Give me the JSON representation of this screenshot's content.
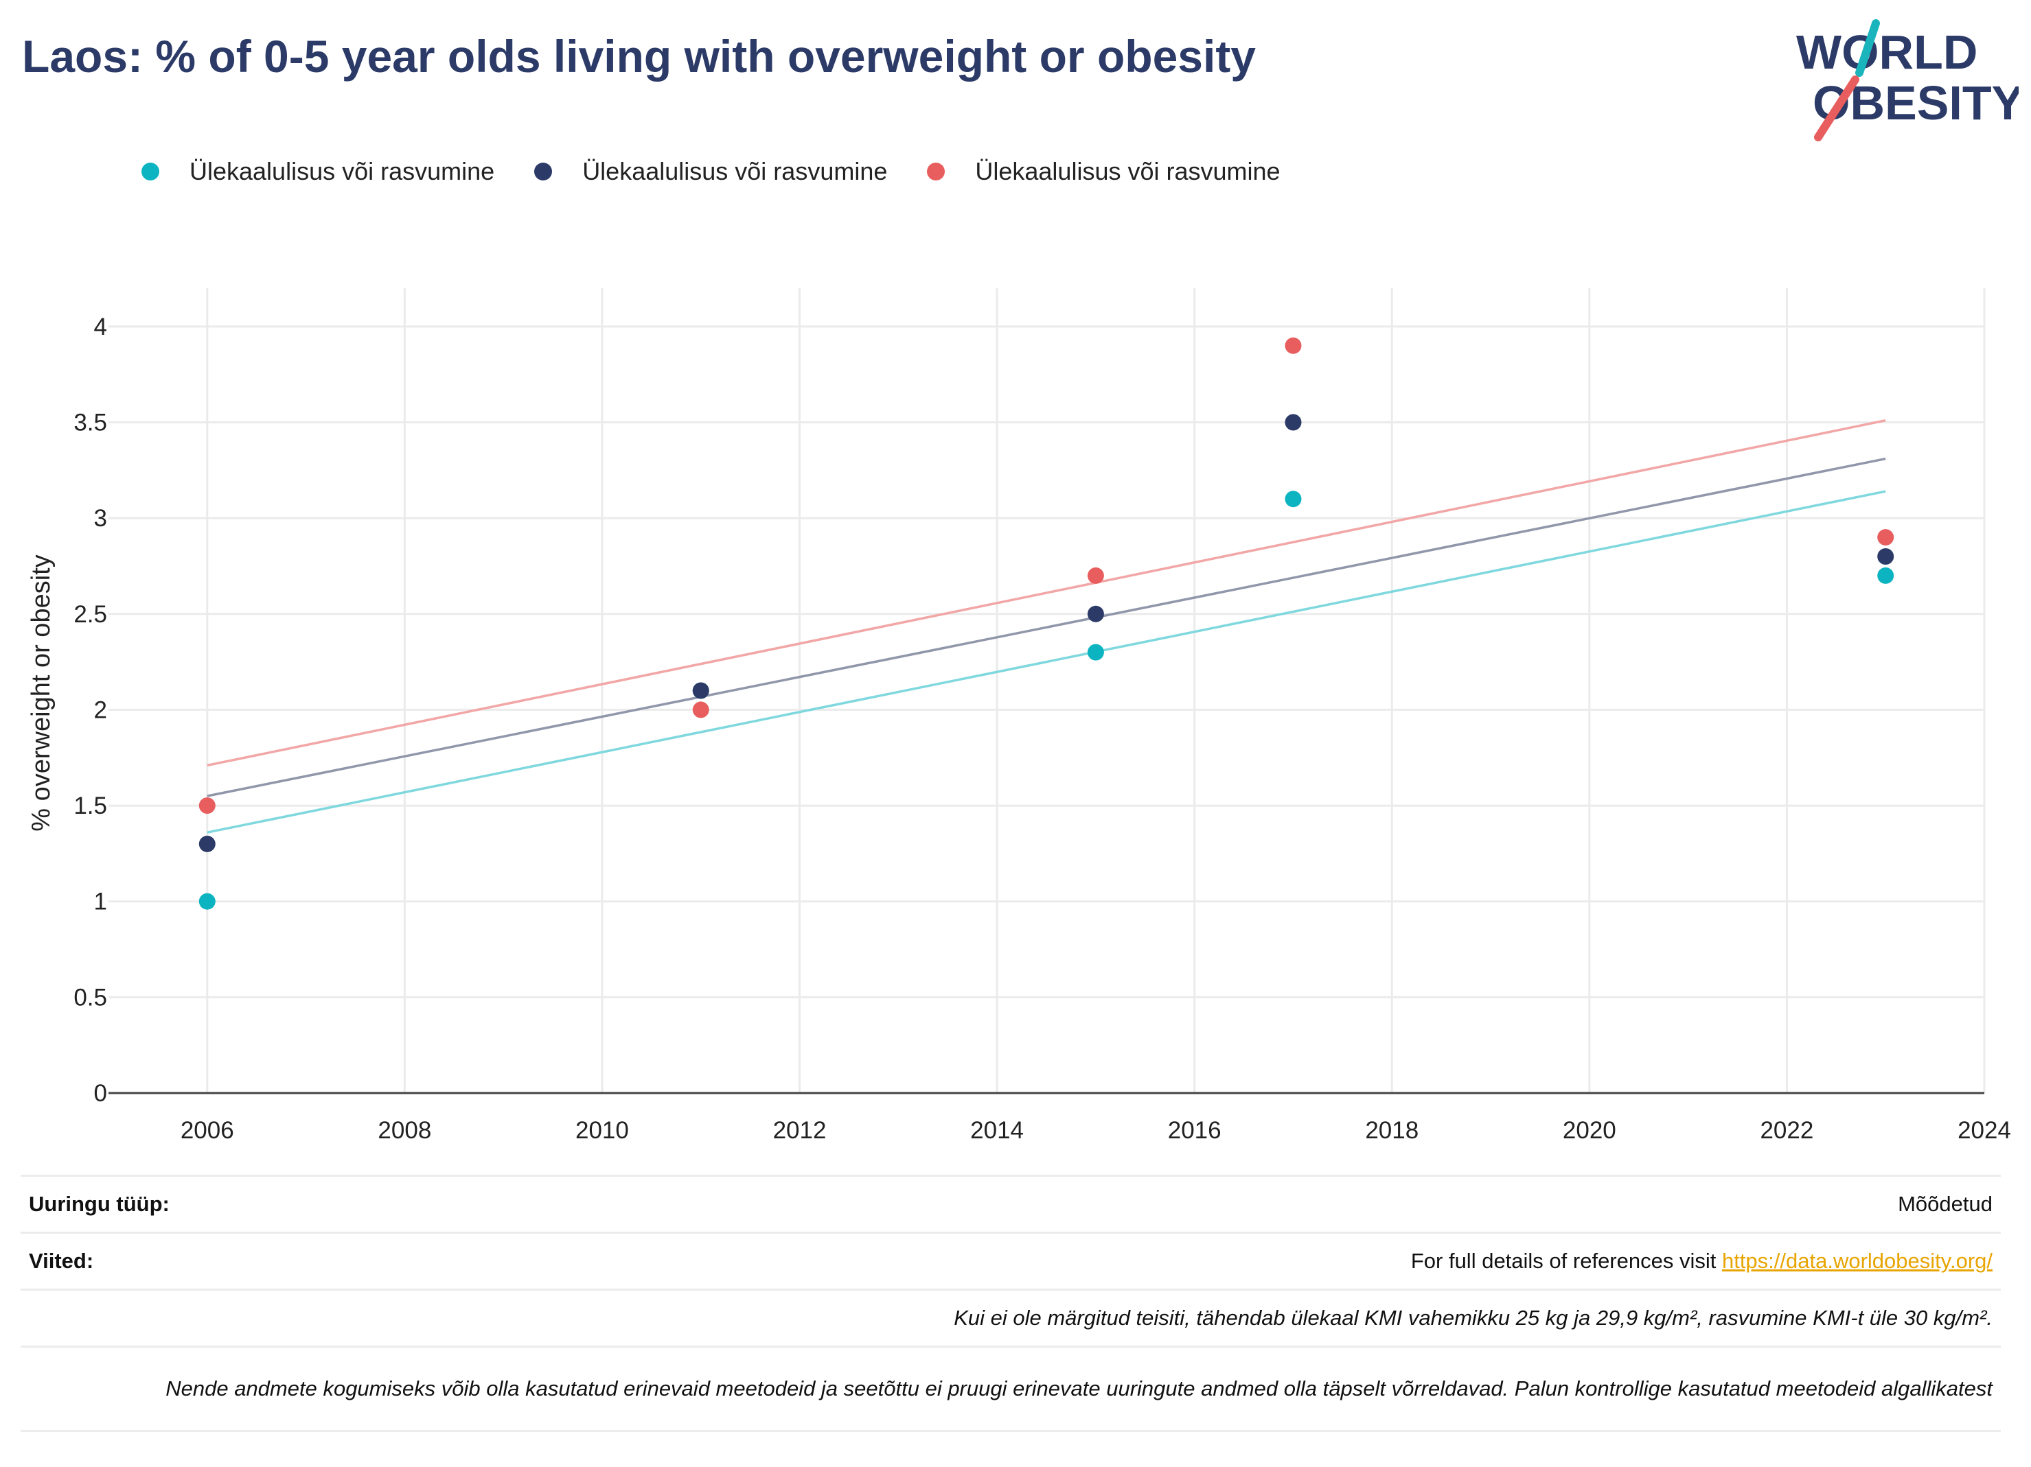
{
  "title": "Laos: % of 0-5 year olds living with overweight or obesity",
  "logo": {
    "line1": "WORLD",
    "line2": "OBESITY",
    "colors": {
      "navy": "#2b3a67",
      "teal": "#1ab4bd",
      "coral": "#e85d5d"
    }
  },
  "legend": [
    {
      "label": "Ülekaalulisus või rasvumine",
      "color": "#0bb4c0"
    },
    {
      "label": "Ülekaalulisus või rasvumine",
      "color": "#2b3a67"
    },
    {
      "label": "Ülekaalulisus või rasvumine",
      "color": "#e85d5d"
    }
  ],
  "chart_data": {
    "type": "scatter",
    "title": "Laos: % of 0-5 year olds living with overweight or obesity",
    "xlabel": "",
    "ylabel": "% overweight or obesity",
    "xlim": [
      2005,
      2024
    ],
    "ylim": [
      0,
      4.2
    ],
    "x_ticks": [
      2006,
      2008,
      2010,
      2012,
      2014,
      2016,
      2018,
      2020,
      2022,
      2024
    ],
    "y_ticks": [
      0,
      0.5,
      1,
      1.5,
      2,
      2.5,
      3,
      3.5,
      4
    ],
    "grid": true,
    "legend_position": "top-left",
    "series": [
      {
        "name": "Ülekaalulisus või rasvumine",
        "color": "#0bb4c0",
        "trend_color": "#7fd8de",
        "points": [
          {
            "x": 2006,
            "y": 1.0
          },
          {
            "x": 2011,
            "y": 2.1
          },
          {
            "x": 2015,
            "y": 2.3
          },
          {
            "x": 2017,
            "y": 3.1
          },
          {
            "x": 2023,
            "y": 2.7
          }
        ],
        "trendline": {
          "x": [
            2006,
            2023
          ],
          "y": [
            1.36,
            3.14
          ]
        }
      },
      {
        "name": "Ülekaalulisus või rasvumine",
        "color": "#2b3a67",
        "trend_color": "#9197aa",
        "points": [
          {
            "x": 2006,
            "y": 1.3
          },
          {
            "x": 2011,
            "y": 2.1
          },
          {
            "x": 2015,
            "y": 2.5
          },
          {
            "x": 2017,
            "y": 3.5
          },
          {
            "x": 2023,
            "y": 2.8
          }
        ],
        "trendline": {
          "x": [
            2006,
            2023
          ],
          "y": [
            1.55,
            3.31
          ]
        }
      },
      {
        "name": "Ülekaalulisus või rasvumine",
        "color": "#e85d5d",
        "trend_color": "#f2a6a6",
        "points": [
          {
            "x": 2006,
            "y": 1.5
          },
          {
            "x": 2011,
            "y": 2.0
          },
          {
            "x": 2015,
            "y": 2.7
          },
          {
            "x": 2017,
            "y": 3.9
          },
          {
            "x": 2023,
            "y": 2.9
          }
        ],
        "trendline": {
          "x": [
            2006,
            2023
          ],
          "y": [
            1.71,
            3.51
          ]
        }
      }
    ]
  },
  "info": {
    "survey_type_label": "Uuringu tüüp:",
    "survey_type_value": "Mõõdetud",
    "references_label": "Viited:",
    "references_text": "For full details of references visit ",
    "references_link": "https://data.worldobesity.org/",
    "note_bmi": "Kui ei ole märgitud teisiti, tähendab ülekaal KMI vahemikku 25 kg ja 29,9 kg/m², rasvumine KMI-t üle 30 kg/m².",
    "note_methods": "Nende andmete kogumiseks võib olla kasutatud erinevaid meetodeid ja seetõttu ei pruugi erinevate uuringute andmed olla täpselt võrreldavad. Palun kontrollige kasutatud meetodeid algallikatest"
  }
}
